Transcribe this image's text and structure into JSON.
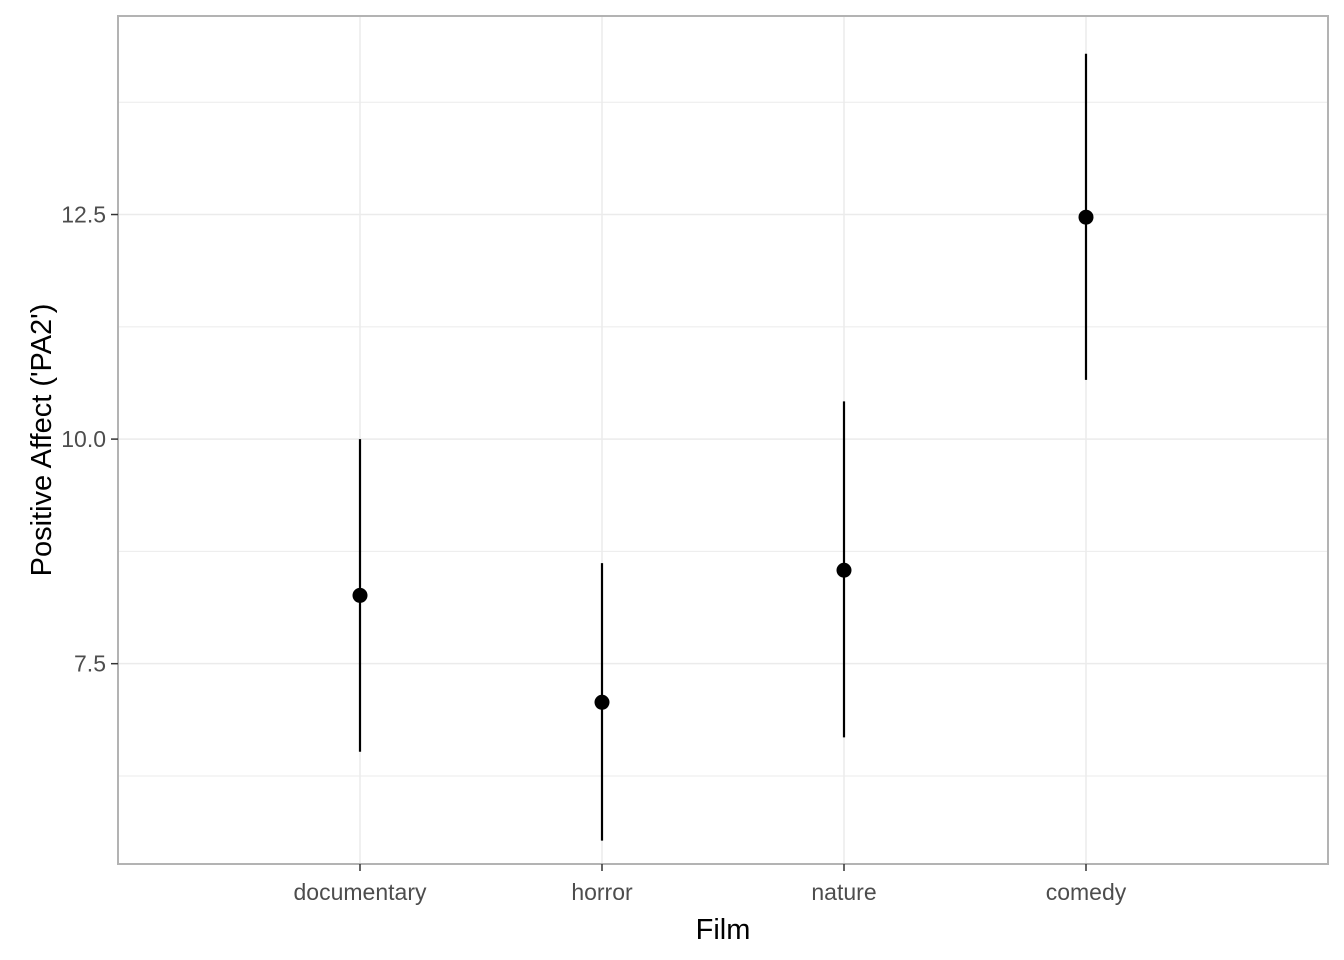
{
  "chart_data": {
    "type": "pointrange",
    "title": "",
    "xlabel": "Film",
    "ylabel": "Positive Affect ('PA2')",
    "categories": [
      "documentary",
      "horror",
      "nature",
      "comedy"
    ],
    "points": [
      {
        "category": "documentary",
        "mean": 8.26,
        "lower": 6.52,
        "upper": 10.0
      },
      {
        "category": "horror",
        "mean": 7.07,
        "lower": 5.53,
        "upper": 8.62
      },
      {
        "category": "nature",
        "mean": 8.54,
        "lower": 6.68,
        "upper": 10.42
      },
      {
        "category": "comedy",
        "mean": 12.47,
        "lower": 10.66,
        "upper": 14.29
      }
    ],
    "y_ticks": [
      7.5,
      10.0,
      12.5
    ],
    "y_tick_labels": [
      "7.5",
      "10.0",
      "12.5"
    ],
    "ylim": [
      5.27,
      14.71
    ],
    "grid": true,
    "legend": "none",
    "colors": {
      "points": "#000000",
      "grid": "#ebebeb",
      "panel_border": "#b3b3b3"
    }
  }
}
